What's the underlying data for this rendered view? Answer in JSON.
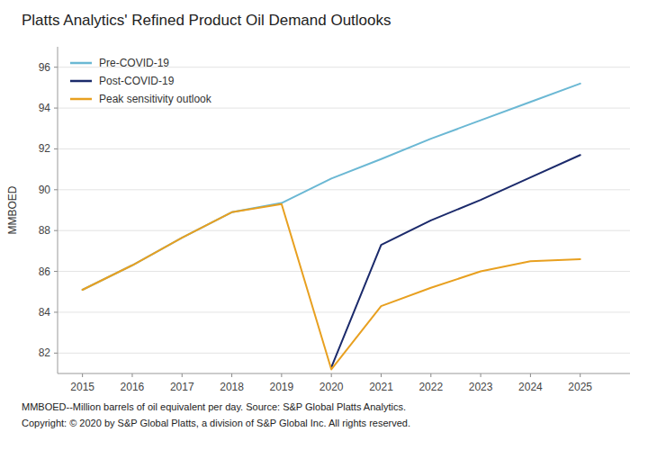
{
  "chart_data": {
    "type": "line",
    "title": "Platts Analytics' Refined Product Oil Demand Outlooks",
    "ylabel": "MMBOED",
    "annotations": [
      "MMBOED--Million barrels of oil equivalent per day. Source: S&P Global Platts Analytics.",
      "Copyright: © 2020 by S&P Global Platts, a division of S&P Global Inc. All rights reserved."
    ],
    "x": [
      2015,
      2016,
      2017,
      2018,
      2019,
      2020,
      2021,
      2022,
      2023,
      2024,
      2025
    ],
    "xlim": [
      2014.5,
      2026.0
    ],
    "xticks": [
      2015,
      2016,
      2017,
      2018,
      2019,
      2020,
      2021,
      2022,
      2023,
      2024,
      2025
    ],
    "ylim": [
      81.0,
      97.0
    ],
    "yticks": [
      82,
      84,
      86,
      88,
      90,
      92,
      94,
      96
    ],
    "grid": true,
    "legend": "upper left",
    "series": [
      {
        "name": "Pre-COVID-19",
        "color": "#6BB8D4",
        "values": [
          85.1,
          86.3,
          87.65,
          88.9,
          89.35,
          90.55,
          91.5,
          92.5,
          93.4,
          94.3,
          95.2
        ]
      },
      {
        "name": "Post-COVID-19",
        "color": "#1B2A6B",
        "values": [
          null,
          null,
          null,
          null,
          null,
          81.3,
          87.3,
          88.5,
          89.5,
          90.6,
          91.7
        ]
      },
      {
        "name": "Peak sensitivity outlook",
        "color": "#E8A020",
        "values": [
          85.1,
          86.3,
          87.65,
          88.9,
          89.3,
          81.2,
          84.3,
          85.2,
          86.0,
          86.5,
          86.6
        ]
      }
    ]
  }
}
